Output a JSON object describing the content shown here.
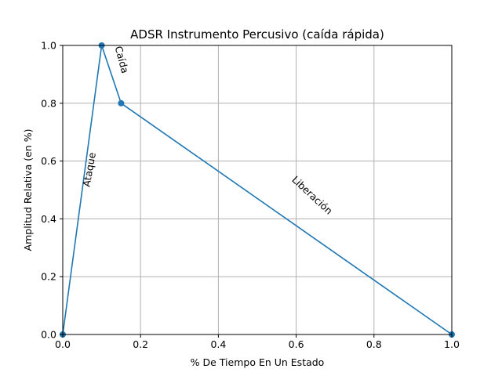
{
  "chart_data": {
    "type": "line",
    "title": "ADSR Instrumento Percusivo (caída rápida)",
    "xlabel": "% De Tiempo En Un Estado",
    "ylabel": "Amplitud Relativa (en %)",
    "xlim": [
      0,
      1
    ],
    "ylim": [
      0,
      1
    ],
    "x_ticks": [
      0,
      0.2,
      0.4,
      0.6,
      0.8,
      1
    ],
    "x_tick_labels": [
      "0.0",
      "0.2",
      "0.4",
      "0.6",
      "0.8",
      "1.0"
    ],
    "y_ticks": [
      0,
      0.2,
      0.4,
      0.6,
      0.8,
      1
    ],
    "y_tick_labels": [
      "0.0",
      "0.2",
      "0.4",
      "0.6",
      "0.8",
      "1.0"
    ],
    "grid": true,
    "series": [
      {
        "x": [
          0,
          0.1,
          0.15,
          1
        ],
        "y": [
          0,
          1,
          0.8,
          0
        ],
        "color": "#1f77b4",
        "markers": true
      }
    ],
    "annotations": [
      {
        "text": "Ataque",
        "x": 0.07,
        "y": 0.57,
        "rotation": -80
      },
      {
        "text": "Caída",
        "x": 0.15,
        "y": 0.95,
        "rotation": 75
      },
      {
        "text": "Liberación",
        "x": 0.64,
        "y": 0.48,
        "rotation": 43
      }
    ]
  }
}
